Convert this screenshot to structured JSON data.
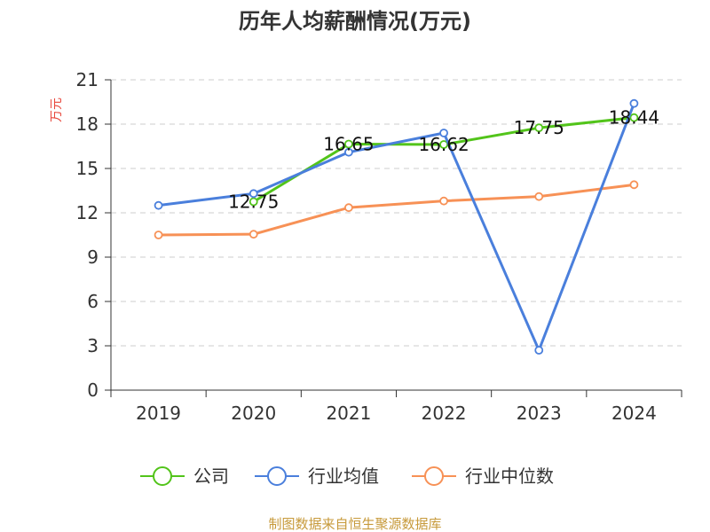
{
  "chart_data": {
    "type": "line",
    "title": "历年人均薪酬情况(万元)",
    "ylabel": "万元",
    "xlabel": "",
    "categories": [
      "2019",
      "2020",
      "2021",
      "2022",
      "2023",
      "2024"
    ],
    "ylim": [
      0,
      21
    ],
    "yticks": [
      0,
      3,
      6,
      9,
      12,
      15,
      18,
      21
    ],
    "grid": true,
    "legend_position": "bottom",
    "series": [
      {
        "name": "公司",
        "color": "#52c41a",
        "values": [
          null,
          12.75,
          16.65,
          16.62,
          17.75,
          18.44
        ],
        "labels": [
          null,
          "12.75",
          "16.65",
          "16.62",
          "17.75",
          "18.44"
        ]
      },
      {
        "name": "行业均值",
        "color": "#4a7fdc",
        "values": [
          12.5,
          13.3,
          16.1,
          17.4,
          2.7,
          19.4
        ]
      },
      {
        "name": "行业中位数",
        "color": "#f79156",
        "values": [
          10.5,
          10.55,
          12.35,
          12.8,
          13.1,
          13.9
        ]
      }
    ]
  },
  "ylabel_color": "#e8473c",
  "source_text": "制图数据来自恒生聚源数据库",
  "source_color": "#c79a3b"
}
